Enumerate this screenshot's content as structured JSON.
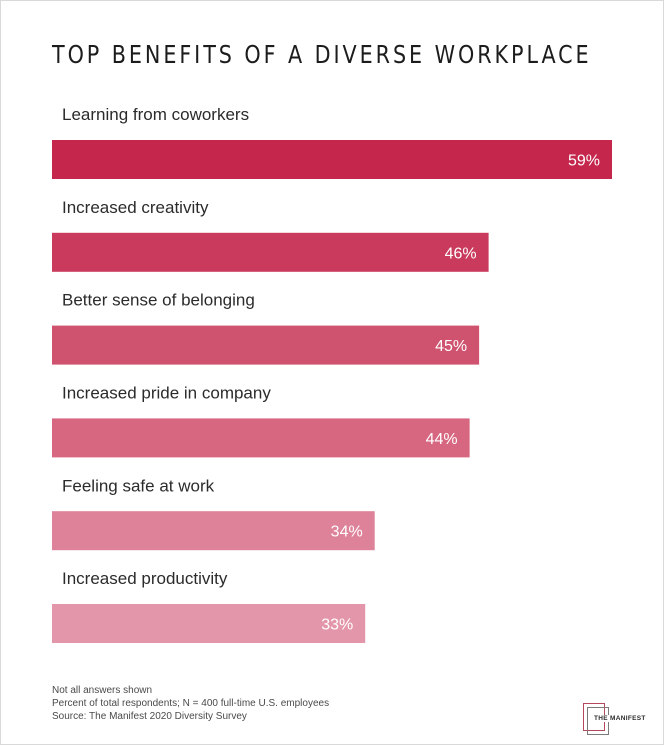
{
  "chart_data": {
    "type": "bar",
    "orientation": "horizontal",
    "title": "TOP BENEFITS OF A DIVERSE WORKPLACE",
    "categories": [
      "Learning from coworkers",
      "Increased creativity",
      "Better sense of belonging",
      "Increased pride in company",
      "Feeling safe at work",
      "Increased productivity"
    ],
    "values": [
      59,
      46,
      45,
      44,
      34,
      33
    ],
    "value_labels": [
      "59%",
      "46%",
      "45%",
      "44%",
      "34%",
      "33%"
    ],
    "unit": "%",
    "bar_colors": [
      "#c4264c",
      "#c93a5d",
      "#cf526f",
      "#d76781",
      "#de8299",
      "#e396a9"
    ],
    "xlim": [
      0,
      59
    ],
    "grid": false,
    "legend": "none"
  },
  "notes": [
    "Not all answers shown",
    "Percent of total respondents; N = 400 full-time U.S. employees",
    "Source: The Manifest 2020 Diversity Survey"
  ],
  "logo": {
    "text": "THE MANIFEST"
  }
}
